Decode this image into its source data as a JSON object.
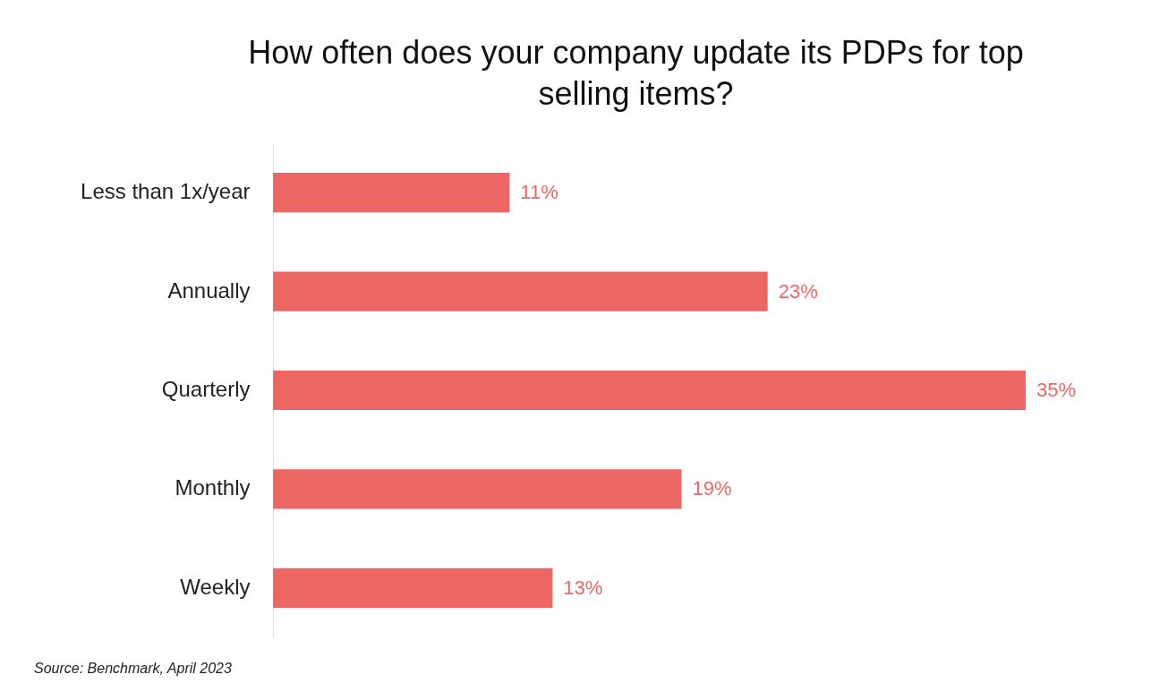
{
  "chart_data": {
    "type": "bar",
    "orientation": "horizontal",
    "title": "How often does your company update its PDPs for top selling items?",
    "categories": [
      "Less than 1x/year",
      "Annually",
      "Quarterly",
      "Monthly",
      "Weekly"
    ],
    "values": [
      11,
      23,
      35,
      19,
      13
    ],
    "value_labels": [
      "11%",
      "23%",
      "35%",
      "19%",
      "13%"
    ],
    "color": "#ec6664",
    "tick_labels": "y",
    "annotations": [
      "Source: Benchmark, April 2023"
    ]
  }
}
